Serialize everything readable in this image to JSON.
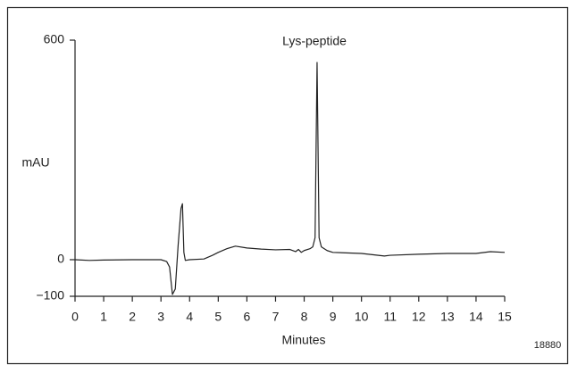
{
  "chart_data": {
    "type": "line",
    "annotation": "Lys-peptide",
    "y_label": "mAU",
    "x_label": "Minutes",
    "figure_id": "18880",
    "xlim": [
      0,
      15
    ],
    "ylim": [
      -100,
      600
    ],
    "xticks": [
      0,
      1,
      2,
      3,
      4,
      5,
      6,
      7,
      8,
      9,
      10,
      11,
      12,
      13,
      14,
      15
    ],
    "yticks": [
      {
        "value": -100,
        "label": "−100"
      },
      0,
      600
    ],
    "series": [
      {
        "color": "#222222",
        "x": [
          0,
          0.5,
          1,
          2,
          3,
          3.2,
          3.3,
          3.4,
          3.5,
          3.6,
          3.7,
          3.75,
          3.8,
          3.85,
          4,
          4.5,
          4.8,
          5,
          5.3,
          5.6,
          6,
          6.5,
          7,
          7.5,
          7.7,
          7.8,
          7.9,
          8,
          8.2,
          8.3,
          8.38,
          8.45,
          8.52,
          8.6,
          8.8,
          9,
          10,
          10.8,
          11,
          12,
          13,
          14,
          14.5,
          15
        ],
        "values": [
          0,
          -2,
          -1,
          0,
          0,
          -5,
          -20,
          -95,
          -80,
          40,
          140,
          153,
          20,
          -2,
          0,
          2,
          12,
          20,
          30,
          37,
          32,
          29,
          27,
          28,
          22,
          28,
          20,
          25,
          30,
          35,
          60,
          539,
          60,
          35,
          25,
          20,
          17,
          10,
          12,
          15,
          17,
          17,
          22,
          20
        ]
      }
    ]
  }
}
